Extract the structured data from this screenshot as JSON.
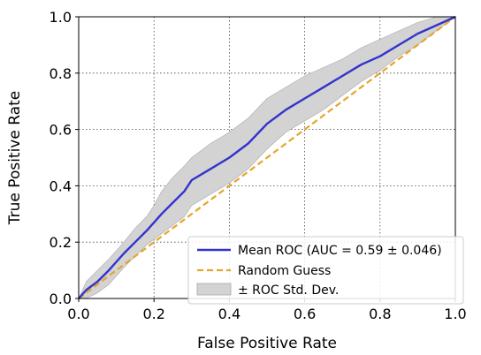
{
  "chart_data": {
    "type": "line",
    "xlabel": "False Positive Rate",
    "ylabel": "True Positive Rate",
    "xlim": [
      0.0,
      1.0
    ],
    "ylim": [
      0.0,
      1.0
    ],
    "xticks": [
      "0.0",
      "0.2",
      "0.4",
      "0.6",
      "0.8",
      "1.0"
    ],
    "yticks": [
      "0.0",
      "0.2",
      "0.4",
      "0.6",
      "0.8",
      "1.0"
    ],
    "grid": true,
    "legend_position": "lower-right",
    "colors": {
      "mean": "#3333cc",
      "random": "#e6a52a",
      "band_fill": "#d3d3d3",
      "band_edge": "#a9a9a9"
    },
    "series": [
      {
        "name": "Mean ROC (AUC = 0.59 ± 0.046)",
        "style": "solid",
        "x": [
          0.0,
          0.02,
          0.05,
          0.08,
          0.1,
          0.12,
          0.15,
          0.18,
          0.2,
          0.22,
          0.25,
          0.28,
          0.3,
          0.35,
          0.4,
          0.45,
          0.5,
          0.55,
          0.6,
          0.65,
          0.7,
          0.75,
          0.8,
          0.85,
          0.9,
          0.95,
          1.0
        ],
        "y": [
          0.0,
          0.03,
          0.06,
          0.1,
          0.13,
          0.16,
          0.2,
          0.24,
          0.27,
          0.3,
          0.34,
          0.38,
          0.42,
          0.46,
          0.5,
          0.55,
          0.62,
          0.67,
          0.71,
          0.75,
          0.79,
          0.83,
          0.86,
          0.9,
          0.94,
          0.97,
          1.0
        ]
      },
      {
        "name": "Random Guess",
        "style": "dashed",
        "x": [
          0.0,
          1.0
        ],
        "y": [
          0.0,
          1.0
        ]
      },
      {
        "name": "± ROC Std. Dev.",
        "style": "band",
        "x": [
          0.0,
          0.02,
          0.05,
          0.08,
          0.1,
          0.12,
          0.15,
          0.18,
          0.2,
          0.22,
          0.25,
          0.28,
          0.3,
          0.35,
          0.4,
          0.45,
          0.5,
          0.55,
          0.6,
          0.65,
          0.7,
          0.75,
          0.8,
          0.85,
          0.9,
          0.95,
          1.0
        ],
        "upper": [
          0.0,
          0.06,
          0.1,
          0.14,
          0.17,
          0.2,
          0.25,
          0.29,
          0.33,
          0.38,
          0.43,
          0.47,
          0.5,
          0.55,
          0.59,
          0.64,
          0.71,
          0.75,
          0.79,
          0.82,
          0.85,
          0.89,
          0.92,
          0.95,
          0.98,
          1.0,
          1.0
        ],
        "lower": [
          0.0,
          0.0,
          0.02,
          0.05,
          0.08,
          0.11,
          0.15,
          0.19,
          0.21,
          0.23,
          0.26,
          0.29,
          0.33,
          0.37,
          0.41,
          0.46,
          0.53,
          0.59,
          0.63,
          0.67,
          0.72,
          0.77,
          0.81,
          0.86,
          0.9,
          0.95,
          1.0
        ]
      }
    ]
  }
}
